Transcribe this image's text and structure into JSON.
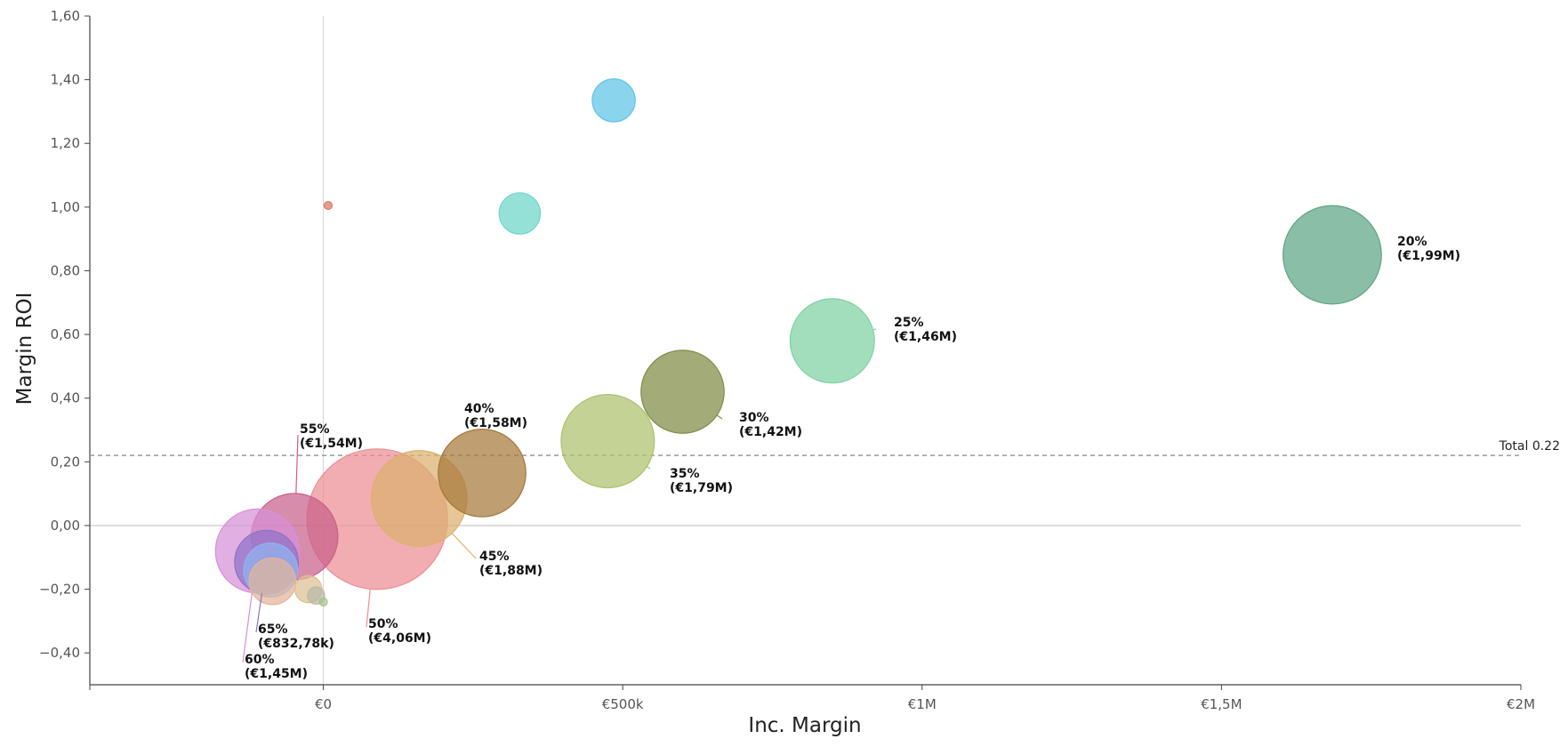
{
  "chart_data": {
    "type": "scatter",
    "xlabel": "Inc. Margin",
    "ylabel": "Margin ROI",
    "xlim": [
      -390000,
      2000000
    ],
    "ylim": [
      -0.5,
      1.6
    ],
    "x_ticks": [
      {
        "value": 0,
        "label": "€0"
      },
      {
        "value": 500000,
        "label": "€500k"
      },
      {
        "value": 1000000,
        "label": "€1M"
      },
      {
        "value": 1500000,
        "label": "€1,5M"
      },
      {
        "value": 2000000,
        "label": "€2M"
      }
    ],
    "y_ticks": [
      {
        "value": 1.6,
        "label": "1,60"
      },
      {
        "value": 1.4,
        "label": "1,40"
      },
      {
        "value": 1.2,
        "label": "1,20"
      },
      {
        "value": 1.0,
        "label": "1,00"
      },
      {
        "value": 0.8,
        "label": "0,80"
      },
      {
        "value": 0.6,
        "label": "0,60"
      },
      {
        "value": 0.4,
        "label": "0,40"
      },
      {
        "value": 0.2,
        "label": "0,20"
      },
      {
        "value": 0.0,
        "label": "0,00"
      },
      {
        "value": -0.2,
        "label": "−0,20"
      },
      {
        "value": -0.4,
        "label": "−0,40"
      }
    ],
    "reference_line": {
      "value": 0.22,
      "label": "Total 0.22"
    },
    "grid": false,
    "size_unit": "EUR",
    "points": [
      {
        "x": 1685000,
        "y": 0.85,
        "size": 1990000,
        "label": [
          "20%",
          "(€1,99M)"
        ],
        "color": "#5ea583"
      },
      {
        "x": 850000,
        "y": 0.58,
        "size": 1460000,
        "label": [
          "25%",
          "(€1,46M)"
        ],
        "color": "#7fd1a2"
      },
      {
        "x": 600000,
        "y": 0.42,
        "size": 1420000,
        "label": [
          "30%",
          "(€1,42M)"
        ],
        "color": "#7f8c45"
      },
      {
        "x": 475000,
        "y": 0.265,
        "size": 1790000,
        "label": [
          "35%",
          "(€1,79M)"
        ],
        "color": "#adc06d"
      },
      {
        "x": 265000,
        "y": 0.165,
        "size": 1580000,
        "label": [
          "40%",
          "(€1,58M)"
        ],
        "color": "#a6783a"
      },
      {
        "x": 160000,
        "y": 0.085,
        "size": 1880000,
        "label": [
          "45%",
          "(€1,88M)"
        ],
        "color": "#ddb06f"
      },
      {
        "x": 90000,
        "y": 0.02,
        "size": 4060000,
        "label": [
          "50%",
          "(€4,06M)"
        ],
        "color": "#ec8e93"
      },
      {
        "x": -48000,
        "y": -0.035,
        "size": 1540000,
        "label": [
          "55%",
          "(€1,54M)"
        ],
        "color": "#c9608a"
      },
      {
        "x": -110000,
        "y": -0.08,
        "size": 1450000,
        "label": [
          "60%",
          "(€1,45M)"
        ],
        "color": "#d690d6"
      },
      {
        "x": -95000,
        "y": -0.115,
        "size": 832780,
        "label": [
          "65%",
          "(€832,78k)"
        ],
        "color": "#8f72c9"
      },
      {
        "x": -88000,
        "y": -0.14,
        "size": 600000,
        "label": [],
        "color": "#8fb4f0"
      },
      {
        "x": -85000,
        "y": -0.175,
        "size": 450000,
        "label": [],
        "color": "#e2b59a"
      },
      {
        "x": -25000,
        "y": -0.2,
        "size": 150000,
        "label": [],
        "color": "#dcc193"
      },
      {
        "x": -12000,
        "y": -0.22,
        "size": 60000,
        "label": [],
        "color": "#b8b8a6"
      },
      {
        "x": 0,
        "y": -0.24,
        "size": 5000,
        "label": [],
        "color": "#a9c48e"
      },
      {
        "x": 8000,
        "y": 1.005,
        "size": 2000,
        "label": [],
        "color": "#d97863"
      },
      {
        "x": 328000,
        "y": 0.98,
        "size": 350000,
        "label": [],
        "color": "#6dd6c8"
      },
      {
        "x": 485000,
        "y": 1.335,
        "size": 380000,
        "label": [],
        "color": "#5ec4e6"
      }
    ]
  }
}
